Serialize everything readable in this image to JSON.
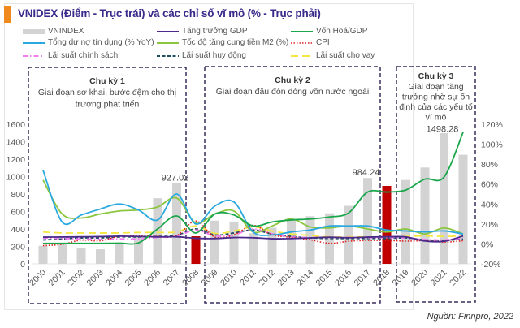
{
  "header": {
    "title": "VNIDEX (Điểm - Trục trái) và các chỉ số vĩ mô (% - Trục phải)",
    "accent_color": "#f08a1c",
    "title_color": "#3b2a8c"
  },
  "source": "Nguồn: Finnpro, 2022",
  "chart_data": {
    "type": "bar+line",
    "title": "VNIDEX (Điểm - Trục trái) và các chỉ số vĩ mô (% - Trục phải)",
    "categories": [
      "2000",
      "2001",
      "2002",
      "2003",
      "2004",
      "2005",
      "2006",
      "2007",
      "2008",
      "2009",
      "2010",
      "2011",
      "2012",
      "2013",
      "2014",
      "2015",
      "2016",
      "2017",
      "2018",
      "2019",
      "2020",
      "2021",
      "2022"
    ],
    "left_axis": {
      "range": [
        0,
        1600
      ],
      "ticks": [
        "0",
        "200",
        "400",
        "600",
        "800",
        "1000",
        "1200",
        "1400",
        "1600"
      ]
    },
    "right_axis": {
      "range": [
        -20,
        120
      ],
      "ticks": [
        "-20%",
        "0%",
        "20%",
        "40%",
        "60%",
        "80%",
        "100%",
        "120%"
      ]
    },
    "grid": false,
    "legend_placement": "top",
    "bars": {
      "name": "VNINDEX",
      "axis": "left",
      "color": "#d3d3d3",
      "highlight_color": "#c00000",
      "highlight_years": [
        "2008",
        "2018"
      ],
      "values": [
        207,
        235,
        183,
        167,
        239,
        308,
        752,
        927,
        316,
        495,
        485,
        352,
        414,
        505,
        546,
        579,
        665,
        984,
        893,
        961,
        1104,
        1498,
        1250
      ]
    },
    "data_labels": [
      {
        "year": "2007",
        "text": "927.02"
      },
      {
        "year": "2017",
        "text": "984.24"
      },
      {
        "year": "2021",
        "text": "1498.28"
      }
    ],
    "series": [
      {
        "name": "Tăng trưởng GDP",
        "color": "#4b2a8c",
        "style": "solid",
        "values": [
          6.8,
          6.9,
          7.1,
          7.3,
          7.8,
          7.5,
          7.0,
          7.1,
          5.7,
          5.4,
          6.4,
          6.2,
          5.2,
          5.4,
          6.0,
          6.7,
          6.2,
          6.8,
          7.1,
          7.0,
          2.9,
          2.6,
          8.0
        ]
      },
      {
        "name": "Vốn Hoá/GDP",
        "color": "#1aa64a",
        "style": "solid",
        "values": [
          0.5,
          0.5,
          0.5,
          0.5,
          0.7,
          1.0,
          15,
          28,
          11,
          30,
          29,
          18,
          22,
          24,
          25,
          27,
          31,
          52,
          52,
          54,
          65,
          67,
          112
        ]
      },
      {
        "name": "Tổng dư nợ tín dụng (% YoY)",
        "color": "#2aa9e0",
        "style": "solid",
        "values": [
          74,
          22,
          29,
          35,
          40,
          34,
          24,
          50,
          20,
          38,
          42,
          12,
          9,
          12,
          14,
          18,
          18,
          18,
          14,
          13,
          12,
          13,
          10
        ]
      },
      {
        "name": "Tốc độ tăng cung tiền M2 (%)",
        "color": "#8cc63f",
        "style": "solid",
        "values": [
          64,
          30,
          26,
          30,
          33,
          34,
          37,
          46,
          21,
          30,
          33,
          12,
          18,
          25,
          17,
          16,
          18,
          15,
          12,
          15,
          10,
          16,
          10
        ]
      },
      {
        "name": "CPI",
        "color": "#e02020",
        "style": "dotted",
        "values": [
          -1.7,
          -0.4,
          3.8,
          3.1,
          7.8,
          8.3,
          7.5,
          8.3,
          23,
          6.9,
          9.2,
          18.6,
          9.2,
          6.6,
          4.1,
          0.6,
          2.7,
          3.5,
          3.5,
          2.8,
          3.2,
          1.8,
          3.2
        ]
      },
      {
        "name": "Lãi suất chính sách",
        "color": "#f07cf0",
        "style": "dashdot",
        "values": [
          6,
          5.5,
          5,
          4.5,
          5,
          5,
          6.5,
          7.5,
          14,
          8,
          9,
          15,
          10,
          7,
          6.5,
          6.5,
          6.5,
          6.3,
          6.3,
          6,
          4.5,
          4,
          6
        ]
      },
      {
        "name": "Lãi suất huy động",
        "color": "#1f4e5f",
        "style": "dashed",
        "values": [
          4,
          5,
          6,
          6,
          7,
          7,
          7.5,
          8.5,
          15,
          9,
          11,
          14,
          10,
          7.5,
          6,
          5.5,
          5.5,
          5.5,
          5.5,
          6,
          4,
          3.5,
          5
        ]
      },
      {
        "name": "Lãi suất cho vay",
        "color": "#f5e642",
        "style": "longdash",
        "values": [
          12,
          11,
          11,
          11,
          11,
          11.5,
          11.5,
          12,
          18,
          10.5,
          13,
          17,
          13,
          10,
          8.5,
          7,
          7,
          7,
          7,
          7.5,
          8,
          7.5,
          8
        ]
      }
    ],
    "cycles": [
      {
        "title": "Chu kỳ 1",
        "desc": [
          "Giai đoạn sơ khai, bước đệm cho thị",
          "trường phát triển"
        ],
        "years": [
          "2000",
          "2007"
        ]
      },
      {
        "title": "Chu kỳ 2",
        "desc": [
          "Giai đoạn đầu đón dòng vốn nước ngoài"
        ],
        "years": [
          "2009",
          "2017"
        ]
      },
      {
        "title": "Chu kỳ 3",
        "desc": [
          "Giai đoạn tăng",
          "trưởng nhờ sự ổn",
          "định của các yếu tố",
          "vĩ mô"
        ],
        "years": [
          "2019",
          "2022"
        ]
      }
    ]
  }
}
